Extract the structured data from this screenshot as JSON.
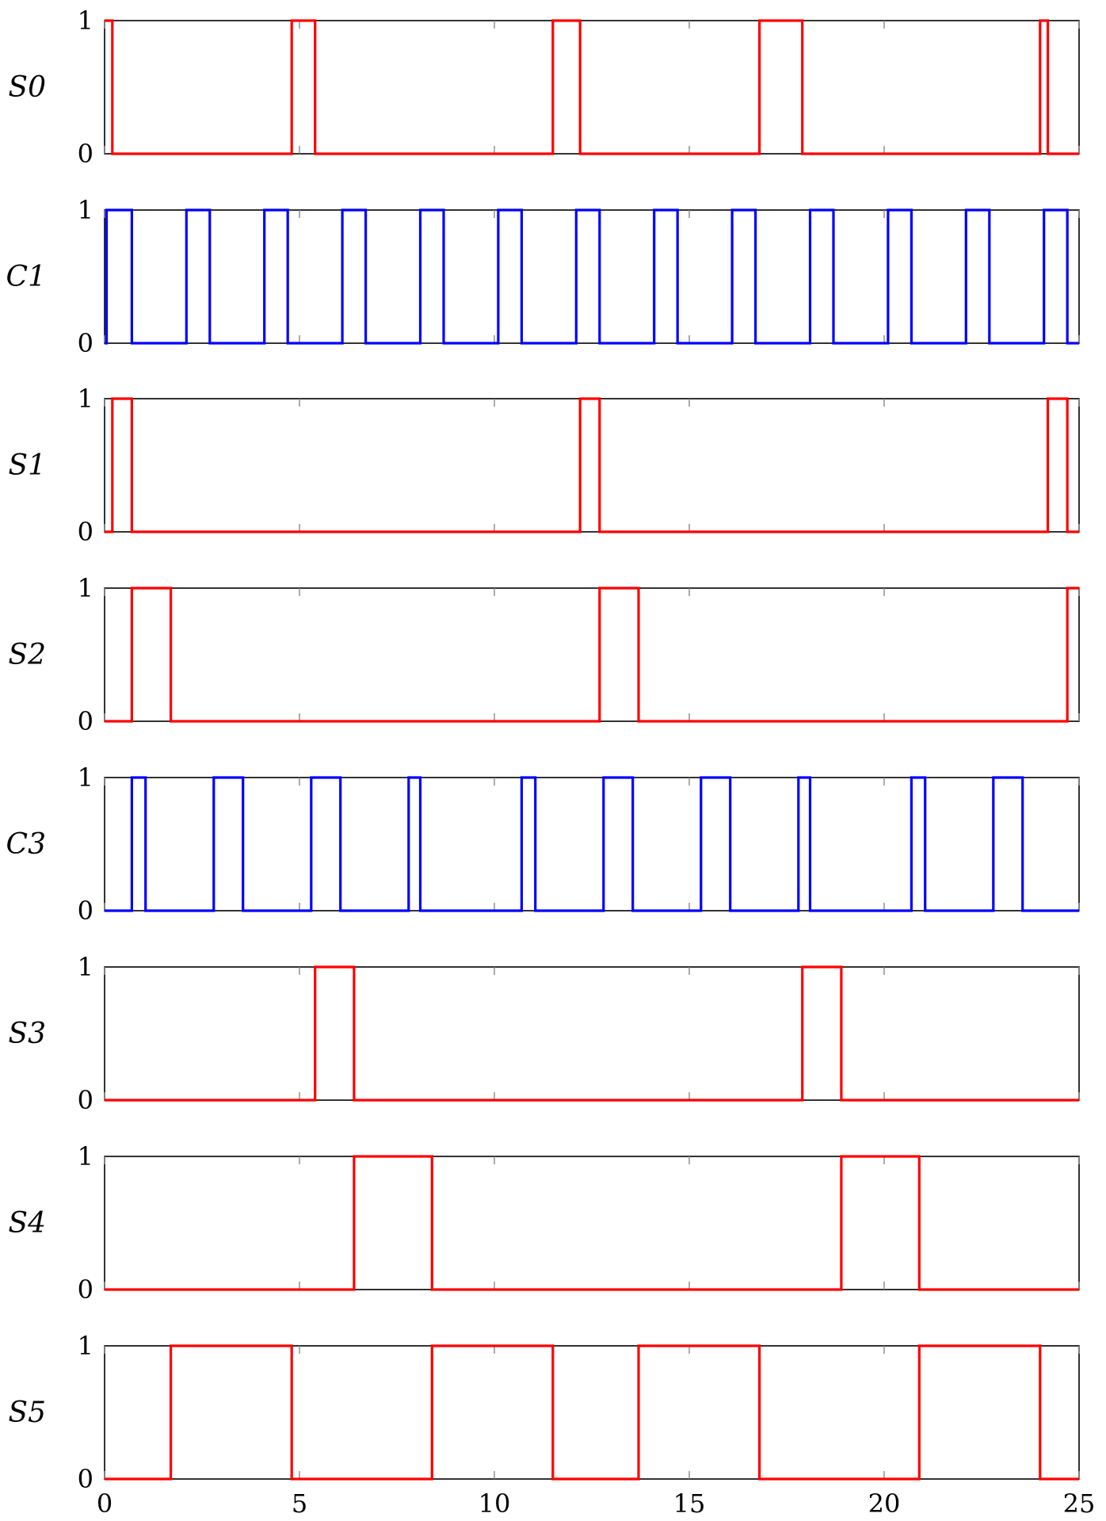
{
  "chart_data": {
    "type": "line",
    "subtype": "step",
    "shared_x_axis": {
      "xlim": [
        0,
        25
      ],
      "ticks": [
        0,
        5,
        10,
        15,
        20,
        25
      ],
      "tick_labels": [
        "0",
        "5",
        "10",
        "15",
        "20",
        "25"
      ]
    },
    "y_ticks": [
      0,
      1
    ],
    "y_tick_labels": [
      "0",
      "1"
    ],
    "grid": false,
    "legend": "none",
    "panels": [
      {
        "ylabel": "S0",
        "color": "#ff0000",
        "ylim": [
          0,
          1
        ],
        "pulses": [
          [
            0,
            0.2
          ],
          [
            4.8,
            5.4
          ],
          [
            11.5,
            12.2
          ],
          [
            16.8,
            17.9
          ],
          [
            24.0,
            24.2
          ]
        ]
      },
      {
        "ylabel": "C1",
        "color": "#0000ff",
        "ylim": [
          0,
          1
        ],
        "pulses": [
          [
            0.05,
            0.7
          ],
          [
            2.1,
            2.7
          ],
          [
            4.1,
            4.7
          ],
          [
            6.1,
            6.7
          ],
          [
            8.1,
            8.7
          ],
          [
            10.1,
            10.7
          ],
          [
            12.1,
            12.7
          ],
          [
            14.1,
            14.7
          ],
          [
            16.1,
            16.7
          ],
          [
            18.1,
            18.7
          ],
          [
            20.1,
            20.7
          ],
          [
            22.1,
            22.7
          ],
          [
            24.1,
            24.7
          ]
        ]
      },
      {
        "ylabel": "S1",
        "color": "#ff0000",
        "ylim": [
          0,
          1
        ],
        "pulses": [
          [
            0.2,
            0.7
          ],
          [
            12.2,
            12.7
          ],
          [
            24.2,
            24.7
          ]
        ]
      },
      {
        "ylabel": "S2",
        "color": "#ff0000",
        "ylim": [
          0,
          1
        ],
        "pulses": [
          [
            0.7,
            1.7
          ],
          [
            12.7,
            13.7
          ],
          [
            24.7,
            25
          ]
        ]
      },
      {
        "ylabel": "C3",
        "color": "#0000ff",
        "ylim": [
          0,
          1
        ],
        "pulses": [
          [
            0.7,
            1.05
          ],
          [
            2.8,
            3.55
          ],
          [
            5.3,
            6.05
          ],
          [
            7.8,
            8.1
          ],
          [
            10.7,
            11.05
          ],
          [
            12.8,
            13.55
          ],
          [
            15.3,
            16.05
          ],
          [
            17.8,
            18.1
          ],
          [
            20.7,
            21.05
          ],
          [
            22.8,
            23.55
          ]
        ]
      },
      {
        "ylabel": "S3",
        "color": "#ff0000",
        "ylim": [
          0,
          1
        ],
        "pulses": [
          [
            5.4,
            6.4
          ],
          [
            17.9,
            18.9
          ]
        ]
      },
      {
        "ylabel": "S4",
        "color": "#ff0000",
        "ylim": [
          0,
          1
        ],
        "pulses": [
          [
            6.4,
            8.4
          ],
          [
            18.9,
            20.9
          ]
        ]
      },
      {
        "ylabel": "S5",
        "color": "#ff0000",
        "ylim": [
          0,
          1
        ],
        "pulses": [
          [
            1.7,
            4.8
          ],
          [
            8.4,
            11.5
          ],
          [
            13.7,
            16.8
          ],
          [
            20.9,
            24.0
          ]
        ]
      }
    ]
  }
}
